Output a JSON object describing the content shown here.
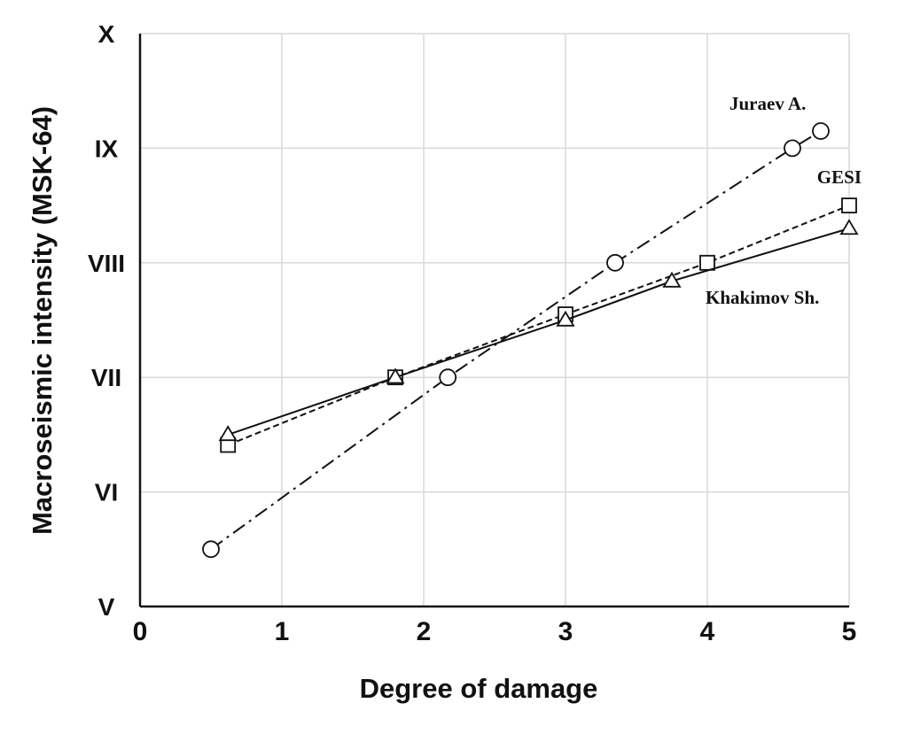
{
  "chart_data": {
    "type": "line",
    "title": "",
    "xlabel": "Degree of damage",
    "ylabel": "Macroseismic intensity (MSK-64)",
    "xlim": [
      0,
      5
    ],
    "ylim": [
      5,
      10
    ],
    "x_ticks": [
      "0",
      "1",
      "2",
      "3",
      "4",
      "5"
    ],
    "y_ticks": [
      {
        "value": 5,
        "label": "V"
      },
      {
        "value": 6,
        "label": "VI"
      },
      {
        "value": 7,
        "label": "VII"
      },
      {
        "value": 8,
        "label": "VIII"
      },
      {
        "value": 9,
        "label": "IX"
      },
      {
        "value": 10,
        "label": "X"
      }
    ],
    "grid": true,
    "series": [
      {
        "name": "Juraev A.",
        "marker": "circle",
        "line_style": "dash-dot",
        "points": [
          [
            0.5,
            5.5
          ],
          [
            2.17,
            7.0
          ],
          [
            3.35,
            8.0
          ],
          [
            4.6,
            9.0
          ],
          [
            4.8,
            9.15
          ]
        ]
      },
      {
        "name": "GESI",
        "marker": "square",
        "line_style": "dashed",
        "points": [
          [
            0.62,
            6.41
          ],
          [
            1.8,
            7.0
          ],
          [
            3.0,
            7.55
          ],
          [
            4.0,
            8.0
          ],
          [
            5.0,
            8.5
          ]
        ]
      },
      {
        "name": "Khakimov Sh.",
        "marker": "triangle",
        "line_style": "solid",
        "points": [
          [
            0.62,
            6.5
          ],
          [
            1.8,
            7.0
          ],
          [
            3.0,
            7.5
          ],
          [
            3.75,
            7.84
          ],
          [
            5.0,
            8.3
          ]
        ]
      }
    ],
    "label_positions": [
      "top-right",
      "right",
      "right"
    ]
  }
}
